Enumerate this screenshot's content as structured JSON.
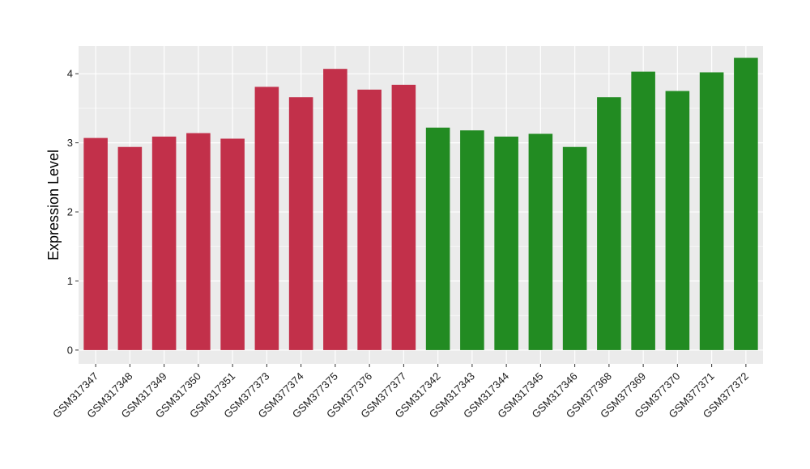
{
  "chart_data": {
    "type": "bar",
    "ylabel": "Expression Level",
    "xlabel": "",
    "ylim": [
      -0.2,
      4.4
    ],
    "yticks": [
      0,
      1,
      2,
      3,
      4
    ],
    "grid": true,
    "panel_background": "#EBEBEB",
    "grid_color": "#FFFFFF",
    "categories": [
      "GSM317347",
      "GSM317348",
      "GSM317349",
      "GSM317350",
      "GSM317351",
      "GSM377373",
      "GSM377374",
      "GSM377375",
      "GSM377376",
      "GSM377377",
      "GSM317342",
      "GSM317343",
      "GSM317344",
      "GSM317345",
      "GSM317346",
      "GSM377368",
      "GSM377369",
      "GSM377370",
      "GSM377371",
      "GSM377372"
    ],
    "values": [
      3.07,
      2.94,
      3.09,
      3.14,
      3.06,
      3.81,
      3.66,
      4.07,
      3.77,
      3.84,
      3.22,
      3.18,
      3.09,
      3.13,
      2.94,
      3.66,
      4.03,
      3.75,
      4.02,
      4.23
    ],
    "bar_colors": [
      "#C2304A",
      "#C2304A",
      "#C2304A",
      "#C2304A",
      "#C2304A",
      "#C2304A",
      "#C2304A",
      "#C2304A",
      "#C2304A",
      "#C2304A",
      "#228B22",
      "#228B22",
      "#228B22",
      "#228B22",
      "#228B22",
      "#228B22",
      "#228B22",
      "#228B22",
      "#228B22",
      "#228B22"
    ]
  }
}
